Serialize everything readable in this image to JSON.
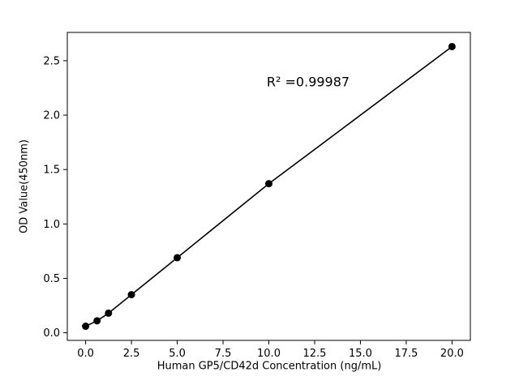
{
  "chart_data": {
    "type": "scatter",
    "title": "",
    "xlabel": "Human GP5/CD42d Concentration (ng/mL)",
    "ylabel": "OD Value(450nm)",
    "annotation": "R² =0.99987",
    "x": [
      0,
      0.625,
      1.25,
      2.5,
      5,
      10,
      20
    ],
    "y": [
      0.06,
      0.11,
      0.18,
      0.35,
      0.69,
      1.37,
      2.63
    ],
    "xlim": [
      -1,
      21
    ],
    "ylim": [
      -0.07,
      2.76
    ],
    "xticks": [
      0.0,
      2.5,
      5.0,
      7.5,
      10.0,
      12.5,
      15.0,
      17.5,
      20.0
    ],
    "yticks": [
      0.0,
      0.5,
      1.0,
      1.5,
      2.0,
      2.5
    ],
    "grid": false,
    "legend": false,
    "line_color": "#000000",
    "marker_color": "#000000",
    "axes_color": "#000000",
    "background_color": "#ffffff"
  }
}
